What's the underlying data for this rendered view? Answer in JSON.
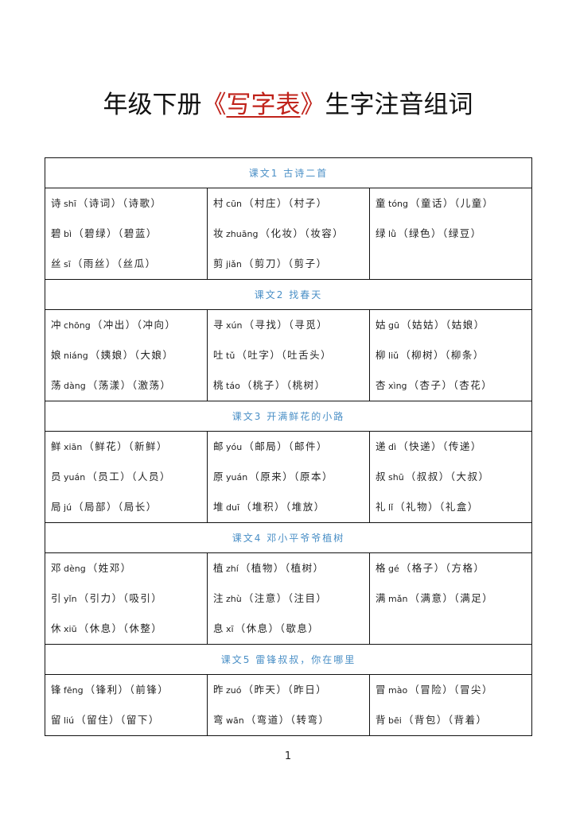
{
  "title": {
    "prefix": "年级下册",
    "highlight_open": "《",
    "highlight": "写字表",
    "highlight_close": "》",
    "suffix": "生字注音组词",
    "highlight_color": "#c0231b"
  },
  "heading_color": "#4a8fc6",
  "lessons": [
    {
      "heading": "课文1  古诗二首",
      "columns": [
        [
          {
            "char": "诗",
            "py": "shī",
            "words": "（诗词）（诗歌）"
          },
          {
            "char": "碧",
            "py": "bì",
            "words": "（碧绿）（碧蓝）"
          },
          {
            "char": "丝",
            "py": "sī",
            "words": "（雨丝）（丝瓜）"
          }
        ],
        [
          {
            "char": "村",
            "py": "cūn",
            "words": "（村庄）（村子）"
          },
          {
            "char": "妆",
            "py": "zhuāng",
            "words": "（化妆）（妆容）"
          },
          {
            "char": "剪",
            "py": "jiǎn",
            "words": "（剪刀）（剪子）"
          }
        ],
        [
          {
            "char": "童",
            "py": "tóng",
            "words": "（童话）（儿童）"
          },
          {
            "char": "绿",
            "py": "lǜ",
            "words": "（绿色）（绿豆）"
          }
        ]
      ]
    },
    {
      "heading": "课文2  找春天",
      "columns": [
        [
          {
            "char": "冲",
            "py": "chōng",
            "words": "（冲出）（冲向）"
          },
          {
            "char": "娘",
            "py": "niáng",
            "words": "（姨娘）（大娘）"
          },
          {
            "char": "荡",
            "py": "dàng",
            "words": "（荡漾）（激荡）"
          }
        ],
        [
          {
            "char": "寻",
            "py": "xún",
            "words": "（寻找）（寻觅）"
          },
          {
            "char": "吐",
            "py": "tǔ",
            "words": "（吐字）（吐舌头）"
          },
          {
            "char": "桃",
            "py": "táo",
            "words": "（桃子）（桃树）"
          }
        ],
        [
          {
            "char": "姑",
            "py": "gū",
            "words": "（姑姑）（姑娘）"
          },
          {
            "char": "柳",
            "py": "liǔ",
            "words": "（柳树）（柳条）"
          },
          {
            "char": "杏",
            "py": "xìng",
            "words": "（杏子）（杏花）"
          }
        ]
      ]
    },
    {
      "heading": "课文3  开满鲜花的小路",
      "columns": [
        [
          {
            "char": "鲜",
            "py": "xiān",
            "words": "（鲜花）（新鲜）"
          },
          {
            "char": "员",
            "py": "yuán",
            "words": "（员工）（人员）"
          },
          {
            "char": "局",
            "py": "jú",
            "words": "（局部）（局长）"
          }
        ],
        [
          {
            "char": "邮",
            "py": "yóu",
            "words": "（邮局）（邮件）"
          },
          {
            "char": "原",
            "py": "yuán",
            "words": "（原来）（原本）"
          },
          {
            "char": "堆",
            "py": "duī",
            "words": "（堆积）（堆放）"
          }
        ],
        [
          {
            "char": "递",
            "py": "dì",
            "words": "（快递）（传递）"
          },
          {
            "char": "叔",
            "py": "shū",
            "words": "（叔叔）（大叔）"
          },
          {
            "char": "礼",
            "py": "lǐ",
            "words": "（礼物）（礼盒）"
          }
        ]
      ]
    },
    {
      "heading": "课文4  邓小平爷爷植树",
      "columns": [
        [
          {
            "char": "邓",
            "py": "dèng",
            "words": "（姓邓）"
          },
          {
            "char": "引",
            "py": "yǐn",
            "words": "（引力）（吸引）"
          },
          {
            "char": "休",
            "py": "xiū",
            "words": "（休息）（休整）"
          }
        ],
        [
          {
            "char": "植",
            "py": "zhí",
            "words": "（植物）（植树）"
          },
          {
            "char": "注",
            "py": "zhù",
            "words": "（注意）（注目）"
          },
          {
            "char": "息",
            "py": "xī",
            "words": "（休息）（歇息）"
          }
        ],
        [
          {
            "char": "格",
            "py": "gé",
            "words": "（格子）（方格）"
          },
          {
            "char": "满",
            "py": "mǎn",
            "words": "（满意）（满足）"
          }
        ]
      ]
    },
    {
      "heading": "课文5  雷锋叔叔，你在哪里",
      "columns": [
        [
          {
            "char": "锋",
            "py": "fēng",
            "words": "（锋利）（前锋）"
          },
          {
            "char": "留",
            "py": "liú",
            "words": "（留住）（留下）"
          }
        ],
        [
          {
            "char": "昨",
            "py": "zuó",
            "words": "（昨天）（昨日）"
          },
          {
            "char": "弯",
            "py": "wān",
            "words": "（弯道）（转弯）"
          }
        ],
        [
          {
            "char": "冒",
            "py": "mào",
            "words": "（冒险）（冒尖）"
          },
          {
            "char": "背",
            "py": "bēi",
            "words": "（背包）（背着）"
          }
        ]
      ]
    }
  ],
  "page_number": "1"
}
